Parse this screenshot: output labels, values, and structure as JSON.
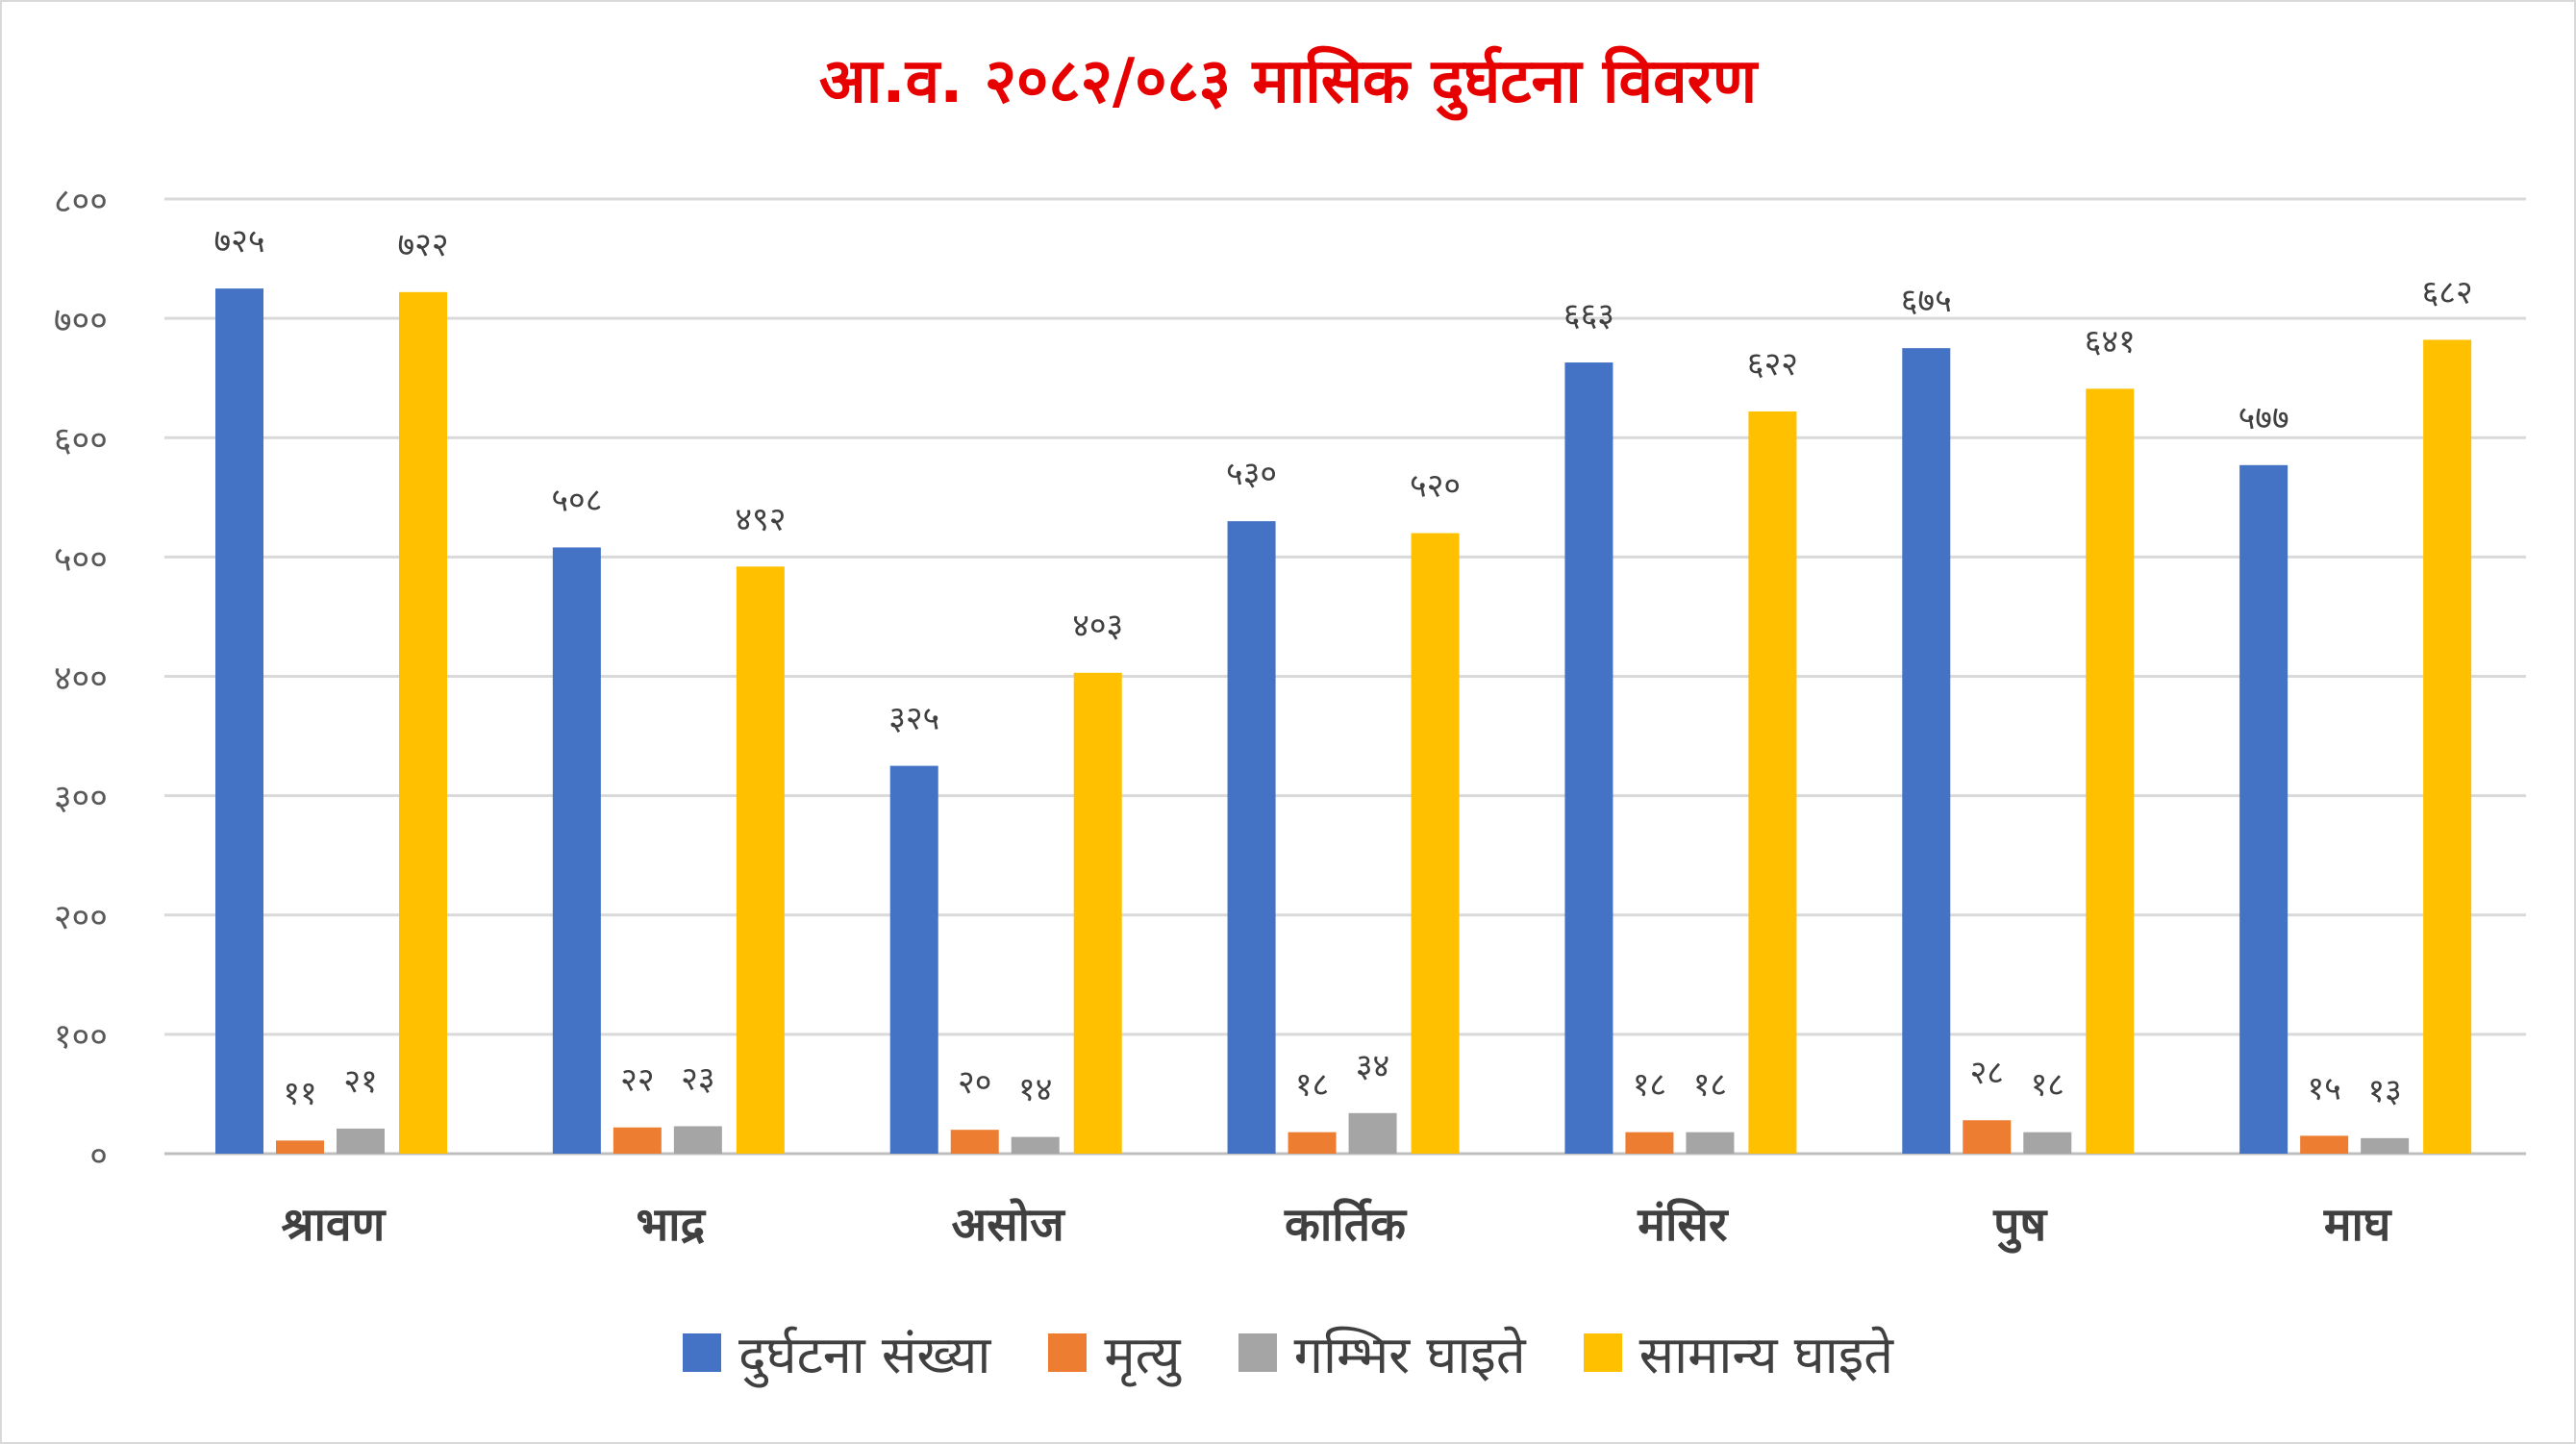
{
  "chart_data": {
    "type": "bar",
    "title": "आ.व. २०८२/०८३ मासिक दुर्घटना विवरण",
    "xlabel": "",
    "ylabel": "",
    "ylim": [
      0,
      800
    ],
    "yticks": [
      0,
      100,
      200,
      300,
      400,
      500,
      600,
      700,
      800
    ],
    "ytick_labels": [
      "०",
      "१००",
      "२००",
      "३००",
      "४००",
      "५००",
      "६००",
      "७००",
      "८००"
    ],
    "grid": true,
    "legend_position": "bottom",
    "categories": [
      "श्रावण",
      "भाद्र",
      "असोज",
      "कार्तिक",
      "मंसिर",
      "पुष",
      "माघ"
    ],
    "series": [
      {
        "name": "दुर्घटना संख्या",
        "color": "#4472c4",
        "values": [
          725,
          508,
          325,
          530,
          663,
          675,
          577
        ],
        "labels": [
          "७२५",
          "५०८",
          "३२५",
          "५३०",
          "६६३",
          "६७५",
          "५७७"
        ]
      },
      {
        "name": "मृत्यु",
        "color": "#ed7d31",
        "values": [
          11,
          22,
          20,
          18,
          18,
          28,
          15
        ],
        "labels": [
          "११",
          "२२",
          "२०",
          "१८",
          "१८",
          "२८",
          "१५"
        ]
      },
      {
        "name": "गम्भिर घाइते",
        "color": "#a5a5a5",
        "values": [
          21,
          23,
          14,
          34,
          18,
          18,
          13
        ],
        "labels": [
          "२१",
          "२३",
          "१४",
          "३४",
          "१८",
          "१८",
          "१३"
        ]
      },
      {
        "name": "सामान्य घाइते",
        "color": "#ffc000",
        "values": [
          722,
          492,
          403,
          520,
          622,
          641,
          682
        ],
        "labels": [
          "७२२",
          "४९२",
          "४०३",
          "५२०",
          "६२२",
          "६४१",
          "६८२"
        ]
      }
    ]
  }
}
